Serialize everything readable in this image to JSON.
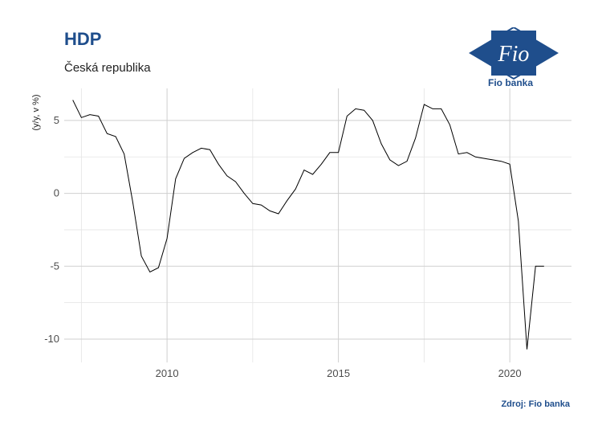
{
  "header": {
    "title": "HDP",
    "subtitle": "Česká republika"
  },
  "logo": {
    "icon": "fio-banka-logo-icon",
    "text": "Fio",
    "caption": "Fio banka",
    "color": "#1f4e8c"
  },
  "footer": {
    "source": "Zdroj: Fio banka"
  },
  "chart_data": {
    "type": "line",
    "title": "HDP",
    "subtitle": "Česká republika",
    "xlabel": "",
    "ylabel": "(y/y, v %)",
    "xlim": [
      2007.0,
      2021.8
    ],
    "ylim": [
      -11.6,
      7.2
    ],
    "x_ticks": [
      2010,
      2015,
      2020
    ],
    "y_ticks": [
      -10,
      -5,
      0,
      5
    ],
    "grid": true,
    "line_color": "#000000",
    "series": [
      {
        "x": [
          2007.25,
          2007.5,
          2007.75,
          2008.0,
          2008.25,
          2008.5,
          2008.75,
          2009.0,
          2009.25,
          2009.5,
          2009.75,
          2010.0,
          2010.25,
          2010.5,
          2010.75,
          2011.0,
          2011.25,
          2011.5,
          2011.75,
          2012.0,
          2012.25,
          2012.5,
          2012.75,
          2013.0,
          2013.25,
          2013.5,
          2013.75,
          2014.0,
          2014.25,
          2014.5,
          2014.75,
          2015.0,
          2015.25,
          2015.5,
          2015.75,
          2016.0,
          2016.25,
          2016.5,
          2016.75,
          2017.0,
          2017.25,
          2017.5,
          2017.75,
          2018.0,
          2018.25,
          2018.5,
          2018.75,
          2019.0,
          2019.25,
          2019.5,
          2019.75,
          2020.0,
          2020.25,
          2020.5,
          2020.75,
          2021.0
        ],
        "values": [
          6.4,
          5.2,
          5.4,
          5.3,
          4.1,
          3.9,
          2.7,
          -0.6,
          -4.3,
          -5.4,
          -5.1,
          -3.1,
          1.0,
          2.4,
          2.8,
          3.1,
          3.0,
          2.0,
          1.2,
          0.8,
          0.0,
          -0.7,
          -0.8,
          -1.2,
          -1.4,
          -0.5,
          0.3,
          1.6,
          1.3,
          2.0,
          2.8,
          2.8,
          5.3,
          5.8,
          5.7,
          5.0,
          3.4,
          2.3,
          1.9,
          2.2,
          3.8,
          6.1,
          5.8,
          5.8,
          4.7,
          2.7,
          2.8,
          2.5,
          2.4,
          2.3,
          2.2,
          2.0,
          -1.9,
          -10.7,
          -5.0,
          -5.0
        ]
      }
    ]
  }
}
